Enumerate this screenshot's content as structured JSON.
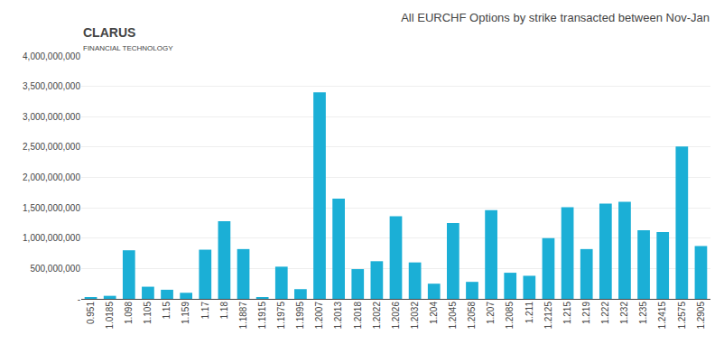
{
  "chart_data": {
    "type": "bar",
    "title": "All EURCHF Options by strike transacted between Nov-Jan",
    "annotations": [
      "CLARUS",
      "FINANCIAL TECHNOLOGY"
    ],
    "categories": [
      "0.951",
      "1.0185",
      "1.098",
      "1.105",
      "1.15",
      "1.159",
      "1.17",
      "1.18",
      "1.1887",
      "1.1915",
      "1.1975",
      "1.1995",
      "1.2007",
      "1.2013",
      "1.2018",
      "1.2022",
      "1.2026",
      "1.2032",
      "1.204",
      "1.2045",
      "1.2058",
      "1.207",
      "1.2085",
      "1.211",
      "1.2125",
      "1.215",
      "1.219",
      "1.222",
      "1.232",
      "1.235",
      "1.2415",
      "1.2575",
      "1.2905"
    ],
    "values": [
      20000000,
      50000000,
      800000000,
      200000000,
      150000000,
      100000000,
      810000000,
      1280000000,
      820000000,
      30000000,
      530000000,
      160000000,
      3400000000,
      1650000000,
      490000000,
      620000000,
      1360000000,
      600000000,
      250000000,
      1250000000,
      280000000,
      1460000000,
      430000000,
      380000000,
      1000000000,
      1510000000,
      820000000,
      1570000000,
      1600000000,
      1130000000,
      1100000000,
      2510000000,
      870000000
    ],
    "color": "#1bafd6",
    "ylim": [
      0,
      4000000000
    ],
    "yticks": [
      {
        "value": 0,
        "label": "-"
      },
      {
        "value": 500000000,
        "label": "500,000,000"
      },
      {
        "value": 1000000000,
        "label": "1,000,000,000"
      },
      {
        "value": 1500000000,
        "label": "1,500,000,000"
      },
      {
        "value": 2000000000,
        "label": "2,000,000,000"
      },
      {
        "value": 2500000000,
        "label": "2,500,000,000"
      },
      {
        "value": 3000000000,
        "label": "3,000,000,000"
      },
      {
        "value": 3500000000,
        "label": "3,500,000,000"
      },
      {
        "value": 4000000000,
        "label": "4,000,000,000"
      }
    ],
    "grid": true
  }
}
